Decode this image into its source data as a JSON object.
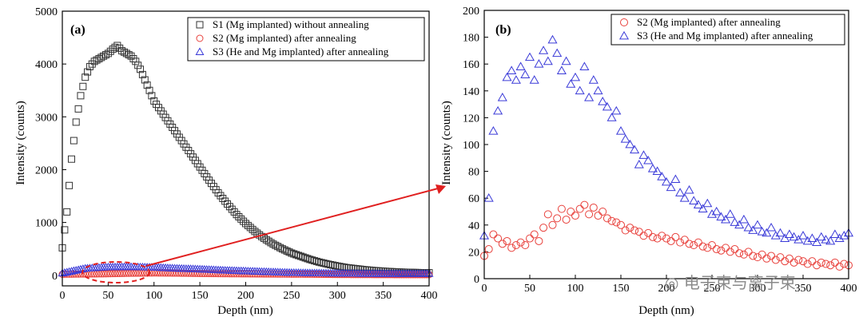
{
  "chart_data": [
    {
      "type": "scatter",
      "panel_label": "(a)",
      "xlabel": "Depth (nm)",
      "ylabel": "Intensity (counts)",
      "xlim": [
        0,
        400
      ],
      "ylim": [
        -200,
        5000
      ],
      "xticks": [
        "0",
        "50",
        "100",
        "150",
        "200",
        "250",
        "300",
        "350",
        "400"
      ],
      "yticks": [
        "0",
        "1000",
        "2000",
        "3000",
        "4000",
        "5000"
      ],
      "legend_position": "top-right",
      "series": [
        {
          "name": "S1 (Mg implanted) without annealing",
          "marker": "square",
          "color": "#333333",
          "x": [
            0,
            5,
            10,
            15,
            20,
            25,
            30,
            35,
            40,
            45,
            50,
            55,
            60,
            65,
            70,
            75,
            80,
            85,
            90,
            95,
            100,
            110,
            120,
            130,
            140,
            150,
            160,
            170,
            180,
            190,
            200,
            210,
            220,
            230,
            240,
            250,
            260,
            270,
            280,
            290,
            300,
            310,
            320,
            330,
            340,
            350,
            360,
            370,
            380,
            390,
            400
          ],
          "y": [
            520,
            1200,
            2200,
            2900,
            3400,
            3750,
            3950,
            4050,
            4100,
            4150,
            4200,
            4280,
            4350,
            4250,
            4200,
            4150,
            4050,
            3900,
            3700,
            3500,
            3300,
            3050,
            2800,
            2550,
            2300,
            2050,
            1800,
            1560,
            1350,
            1150,
            980,
            830,
            700,
            590,
            500,
            420,
            360,
            300,
            250,
            210,
            175,
            145,
            125,
            105,
            90,
            78,
            68,
            60,
            55,
            50,
            48
          ]
        },
        {
          "name": "S2 (Mg  implanted) after annealing",
          "marker": "circle",
          "color": "#e8413c",
          "x": [
            0,
            25,
            50,
            75,
            100,
            125,
            150,
            175,
            200,
            225,
            250,
            275,
            300,
            325,
            350,
            375,
            400
          ],
          "y": [
            20,
            25,
            30,
            40,
            45,
            42,
            35,
            30,
            28,
            25,
            22,
            20,
            15,
            14,
            13,
            12,
            12
          ]
        },
        {
          "name": "S3 (He and Mg  implanted) after annealing",
          "marker": "triangle",
          "color": "#3a3ad8",
          "x": [
            0,
            25,
            50,
            75,
            100,
            125,
            150,
            175,
            200,
            225,
            250,
            275,
            300,
            325,
            350,
            375,
            400
          ],
          "y": [
            40,
            130,
            155,
            160,
            150,
            130,
            115,
            95,
            80,
            65,
            50,
            42,
            38,
            32,
            30,
            28,
            30
          ]
        }
      ]
    },
    {
      "type": "scatter",
      "panel_label": "(b)",
      "xlabel": "Depth (nm)",
      "ylabel": "Intensity (counts)",
      "xlim": [
        0,
        400
      ],
      "ylim": [
        0,
        200
      ],
      "xticks": [
        "0",
        "50",
        "100",
        "150",
        "200",
        "250",
        "300",
        "350",
        "400"
      ],
      "yticks": [
        "0",
        "20",
        "40",
        "60",
        "80",
        "100",
        "120",
        "140",
        "160",
        "180",
        "200"
      ],
      "legend_position": "top-right",
      "series": [
        {
          "name": "S2 (Mg  implanted) after annealing",
          "marker": "circle",
          "color": "#e8413c",
          "x": [
            0,
            5,
            10,
            15,
            20,
            25,
            30,
            35,
            40,
            45,
            50,
            55,
            60,
            65,
            70,
            75,
            80,
            85,
            90,
            95,
            100,
            105,
            110,
            115,
            120,
            125,
            130,
            135,
            140,
            145,
            150,
            155,
            160,
            165,
            170,
            175,
            180,
            185,
            190,
            195,
            200,
            205,
            210,
            215,
            220,
            225,
            230,
            235,
            240,
            245,
            250,
            255,
            260,
            265,
            270,
            275,
            280,
            285,
            290,
            295,
            300,
            305,
            310,
            315,
            320,
            325,
            330,
            335,
            340,
            345,
            350,
            355,
            360,
            365,
            370,
            375,
            380,
            385,
            390,
            395,
            400
          ],
          "y": [
            17,
            22,
            33,
            30,
            26,
            28,
            23,
            25,
            27,
            25,
            30,
            33,
            28,
            38,
            48,
            40,
            45,
            52,
            44,
            50,
            47,
            52,
            55,
            48,
            53,
            47,
            50,
            45,
            43,
            42,
            40,
            36,
            38,
            36,
            35,
            32,
            34,
            31,
            30,
            32,
            30,
            28,
            31,
            27,
            29,
            26,
            25,
            27,
            24,
            23,
            25,
            22,
            21,
            23,
            20,
            22,
            19,
            18,
            20,
            17,
            16,
            18,
            15,
            17,
            14,
            16,
            13,
            15,
            12,
            14,
            13,
            11,
            13,
            10,
            12,
            11,
            10,
            12,
            9,
            11,
            10
          ]
        },
        {
          "name": "S3 (He and Mg  implanted) after annealing",
          "marker": "triangle",
          "color": "#3a3ad8",
          "x": [
            0,
            5,
            10,
            15,
            20,
            25,
            30,
            35,
            40,
            45,
            50,
            55,
            60,
            65,
            70,
            75,
            80,
            85,
            90,
            95,
            100,
            105,
            110,
            115,
            120,
            125,
            130,
            135,
            140,
            145,
            150,
            155,
            160,
            165,
            170,
            175,
            180,
            185,
            190,
            195,
            200,
            205,
            210,
            215,
            220,
            225,
            230,
            235,
            240,
            245,
            250,
            255,
            260,
            265,
            270,
            275,
            280,
            285,
            290,
            295,
            300,
            305,
            310,
            315,
            320,
            325,
            330,
            335,
            340,
            345,
            350,
            355,
            360,
            365,
            370,
            375,
            380,
            385,
            390,
            395,
            400
          ],
          "y": [
            32,
            60,
            110,
            125,
            135,
            150,
            155,
            148,
            158,
            152,
            165,
            148,
            160,
            170,
            162,
            178,
            168,
            155,
            162,
            145,
            150,
            140,
            158,
            135,
            148,
            140,
            132,
            128,
            120,
            125,
            110,
            104,
            100,
            96,
            85,
            92,
            88,
            82,
            80,
            76,
            72,
            68,
            74,
            64,
            60,
            66,
            58,
            55,
            52,
            56,
            48,
            50,
            46,
            44,
            48,
            42,
            40,
            44,
            38,
            36,
            40,
            35,
            34,
            38,
            32,
            34,
            30,
            33,
            31,
            29,
            32,
            28,
            30,
            27,
            31,
            29,
            28,
            33,
            30,
            32,
            34
          ]
        }
      ]
    }
  ],
  "watermark": "电子束与离子束"
}
